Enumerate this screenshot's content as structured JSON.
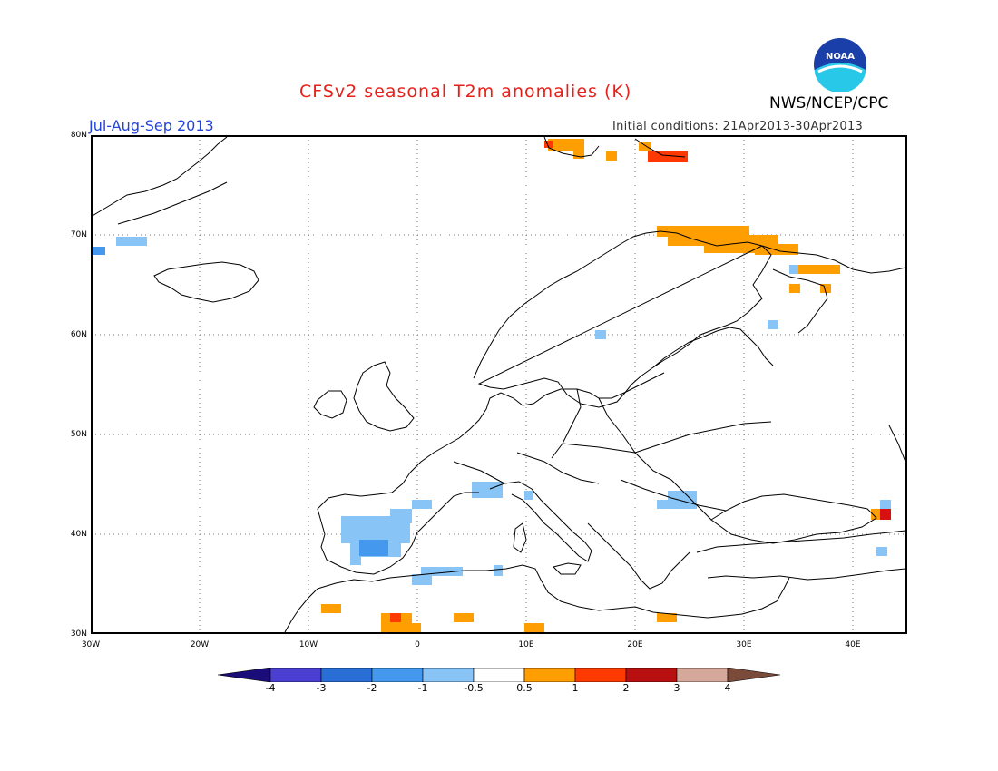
{
  "header": {
    "title": "CFSv2 seasonal T2m anomalies (K)",
    "period": "Jul-Aug-Sep 2013",
    "initial_conditions": "Initial conditions: 21Apr2013-30Apr2013",
    "agency": "NWS/NCEP/CPC",
    "logo_icon": "noaa-logo-icon",
    "logo_text": "NOAA"
  },
  "map": {
    "lat_labels": [
      "80N",
      "70N",
      "60N",
      "50N",
      "40N",
      "30N"
    ],
    "lon_labels": [
      "30W",
      "20W",
      "10W",
      "0",
      "10E",
      "20E",
      "30E",
      "40E"
    ],
    "lon_range": [
      -30,
      45
    ],
    "lat_range": [
      30,
      80
    ]
  },
  "colorbar": {
    "labels": [
      "-4",
      "-3",
      "-2",
      "-1",
      "-0.5",
      "0.5",
      "1",
      "2",
      "3",
      "4"
    ],
    "colors": [
      "#1a0d7a",
      "#4a3fd0",
      "#2a6fd6",
      "#4499ee",
      "#88c4f5",
      "#ffffff",
      "#ff9e00",
      "#ff3a00",
      "#b81010",
      "#d4a89a",
      "#7a4a3a"
    ]
  }
}
